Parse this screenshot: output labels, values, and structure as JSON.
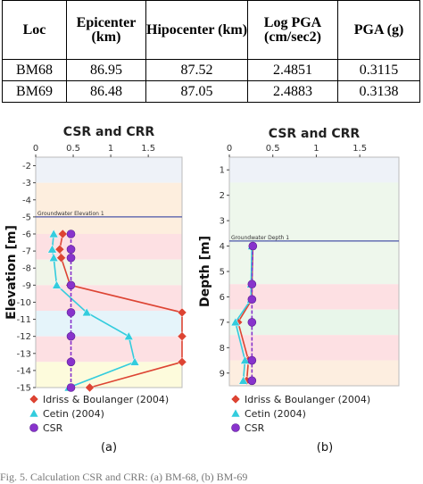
{
  "table": {
    "headers": [
      "Loc",
      "Epicenter (km)",
      "Hipocenter (km)",
      "Log PGA (cm/sec2)",
      "PGA (g)"
    ],
    "rows": [
      [
        "BM68",
        "86.95",
        "87.52",
        "2.4851",
        "0.3115"
      ],
      [
        "BM69",
        "86.48",
        "87.05",
        "2.4883",
        "0.3138"
      ]
    ]
  },
  "caption": "Fig. 5. Calculation CSR and CRR: (a) BM-68, (b) BM-69",
  "chart_data": [
    {
      "type": "line",
      "panel_label": "(a)",
      "title": "CSR and CRR",
      "xlabel": "",
      "ylabel": "Elevation [m]",
      "xlim": [
        0,
        1.95
      ],
      "ylim": [
        -15,
        -1.5
      ],
      "xticks": [
        0,
        0.5,
        1,
        1.5
      ],
      "xtick_labels": [
        "0",
        "0.5",
        "1",
        "1.5"
      ],
      "yticks": [
        -2,
        -3,
        -4,
        -5,
        -6,
        -7,
        -8,
        -9,
        -10,
        -11,
        -12,
        -13,
        -14,
        -15
      ],
      "groundwater": {
        "label": "Groundwater Elevation 1",
        "value": -5
      },
      "bands": [
        {
          "from": -1.5,
          "to": -3,
          "color": "#eef2f8"
        },
        {
          "from": -3,
          "to": -6,
          "color": "#fdeede"
        },
        {
          "from": -6,
          "to": -7.5,
          "color": "#fde0e3"
        },
        {
          "from": -7.5,
          "to": -9,
          "color": "#f0f5e8"
        },
        {
          "from": -9,
          "to": -10.5,
          "color": "#fde0e3"
        },
        {
          "from": -10.5,
          "to": -12,
          "color": "#e5f4fa"
        },
        {
          "from": -12,
          "to": -13.5,
          "color": "#fde0e3"
        },
        {
          "from": -13.5,
          "to": -15,
          "color": "#fdfbdc"
        }
      ],
      "series": [
        {
          "name": "Idriss & Boulanger (2004)",
          "color": "#dd4433",
          "marker": "diamond",
          "x": [
            0.36,
            0.32,
            0.34,
            0.46,
            1.95,
            1.95,
            1.95,
            0.72
          ],
          "y": [
            -6,
            -6.9,
            -7.4,
            -9,
            -10.6,
            -12,
            -13.5,
            -15
          ]
        },
        {
          "name": "Cetin (2004)",
          "color": "#33ccdd",
          "marker": "triangle",
          "x": [
            0.24,
            0.22,
            0.24,
            0.28,
            0.68,
            1.24,
            1.32,
            0.44
          ],
          "y": [
            -6,
            -6.9,
            -7.4,
            -9,
            -10.6,
            -12,
            -13.5,
            -15
          ]
        },
        {
          "name": "CSR",
          "color": "#8833cc",
          "marker": "circle",
          "x": [
            0.47,
            0.47,
            0.47,
            0.47,
            0.47,
            0.47,
            0.47,
            0.47
          ],
          "y": [
            -6,
            -6.9,
            -7.4,
            -9,
            -10.6,
            -12,
            -13.5,
            -15
          ]
        }
      ]
    },
    {
      "type": "line",
      "panel_label": "(b)",
      "title": "CSR and CRR",
      "xlabel": "",
      "ylabel": "Depth [m]",
      "xlim": [
        0,
        1.95
      ],
      "ylim": [
        0.5,
        9.5
      ],
      "xticks": [
        0,
        0.5,
        1,
        1.5
      ],
      "xtick_labels": [
        "0",
        "0.5",
        "1",
        "1.5"
      ],
      "yticks": [
        1,
        2,
        3,
        4,
        5,
        6,
        7,
        8,
        9
      ],
      "groundwater": {
        "label": "Groundwater Depth 1",
        "value": 3.8
      },
      "bands": [
        {
          "from": 0.5,
          "to": 1.5,
          "color": "#eef2f8"
        },
        {
          "from": 1.5,
          "to": 5.5,
          "color": "#eef7ec"
        },
        {
          "from": 5.5,
          "to": 6.5,
          "color": "#fde0e3"
        },
        {
          "from": 6.5,
          "to": 7.5,
          "color": "#e8f6ea"
        },
        {
          "from": 7.5,
          "to": 8.5,
          "color": "#fde0e3"
        },
        {
          "from": 8.5,
          "to": 9.5,
          "color": "#fdeee0"
        }
      ],
      "series": [
        {
          "name": "Idriss & Boulanger (2004)",
          "color": "#dd4433",
          "marker": "diamond",
          "x": [
            0.27,
            0.26,
            0.26,
            0.1,
            0.22,
            0.2
          ],
          "y": [
            4,
            5.5,
            6.1,
            7,
            8.5,
            9.3
          ]
        },
        {
          "name": "Cetin (2004)",
          "color": "#33ccdd",
          "marker": "triangle",
          "x": [
            0.26,
            0.25,
            0.25,
            0.07,
            0.18,
            0.16
          ],
          "y": [
            4,
            5.5,
            6.1,
            7,
            8.5,
            9.3
          ]
        },
        {
          "name": "CSR",
          "color": "#8833cc",
          "marker": "circle",
          "x": [
            0.27,
            0.26,
            0.26,
            0.26,
            0.26,
            0.26
          ],
          "y": [
            4,
            5.5,
            6.1,
            7,
            8.5,
            9.3
          ]
        }
      ]
    }
  ]
}
